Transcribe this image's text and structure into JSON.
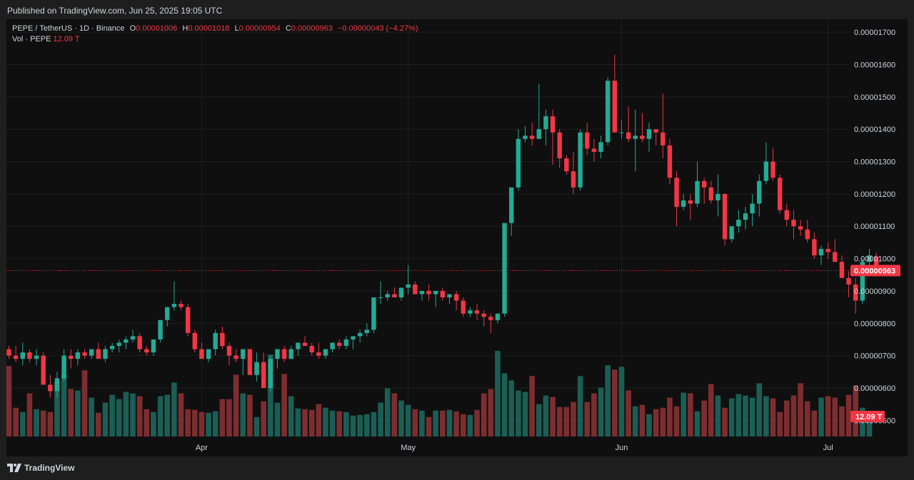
{
  "header": {
    "published": "Published on TradingView.com, Jun 25, 2025 19:05 UTC"
  },
  "legend": {
    "symbol": "PEPE / TetherUS · 1D · Binance",
    "o_label": "O",
    "o_value": "0.00001006",
    "h_label": "H",
    "h_value": "0.00001018",
    "l_label": "L",
    "l_value": "0.00000954",
    "c_label": "C",
    "c_value": "0.00000963",
    "change": "−0.00000043 (−4.27%)",
    "vol_label": "Vol · PEPE",
    "vol_value": "12.09 T"
  },
  "footer": {
    "brand": "TradingView",
    "logo_icon": "tradingview-logo-icon"
  },
  "colors": {
    "up": "#22ab94",
    "down": "#f23645",
    "up_vol": "#1a5e55",
    "down_vol": "#7d2d2f",
    "bg": "#0f0f0f"
  },
  "chart_data": {
    "type": "candlestick",
    "symbol": "PEPE / TetherUS",
    "interval": "1D",
    "y_axis": {
      "ticks": [
        "0.00000500",
        "0.00000600",
        "0.00000700",
        "0.00000800",
        "0.00000900",
        "0.00001000",
        "0.00001100",
        "0.00001200",
        "0.00001300",
        "0.00001400",
        "0.00001500",
        "0.00001600",
        "0.00001700"
      ],
      "range": [
        4.5e-06,
        1.74e-05
      ],
      "scale": 1e-08
    },
    "x_axis": {
      "ticks": [
        "Apr",
        "May",
        "Jun",
        "Jul"
      ],
      "tick_day_index": [
        28,
        58,
        89,
        119
      ]
    },
    "current_price_label": "0.00000963",
    "current_price": 963,
    "volume_label": "12.09 T",
    "candles_1e8": [
      [
        720,
        730,
        690,
        700
      ],
      [
        700,
        730,
        680,
        690
      ],
      [
        690,
        740,
        670,
        710
      ],
      [
        710,
        720,
        680,
        690
      ],
      [
        690,
        720,
        670,
        700
      ],
      [
        700,
        710,
        620,
        610
      ],
      [
        610,
        640,
        570,
        590
      ],
      [
        590,
        650,
        570,
        630
      ],
      [
        630,
        720,
        620,
        700
      ],
      [
        700,
        720,
        660,
        690
      ],
      [
        690,
        720,
        670,
        710
      ],
      [
        710,
        720,
        690,
        700
      ],
      [
        700,
        720,
        690,
        720
      ],
      [
        720,
        740,
        700,
        690
      ],
      [
        690,
        730,
        680,
        720
      ],
      [
        720,
        740,
        710,
        730
      ],
      [
        730,
        750,
        710,
        740
      ],
      [
        740,
        760,
        720,
        750
      ],
      [
        750,
        780,
        740,
        760
      ],
      [
        760,
        770,
        710,
        720
      ],
      [
        720,
        730,
        700,
        710
      ],
      [
        710,
        740,
        700,
        750
      ],
      [
        750,
        800,
        740,
        810
      ],
      [
        810,
        830,
        790,
        850
      ],
      [
        850,
        930,
        840,
        860
      ],
      [
        860,
        870,
        840,
        850
      ],
      [
        850,
        860,
        760,
        770
      ],
      [
        770,
        780,
        710,
        720
      ],
      [
        720,
        740,
        700,
        690
      ],
      [
        690,
        720,
        680,
        720
      ],
      [
        720,
        780,
        700,
        770
      ],
      [
        770,
        790,
        720,
        730
      ],
      [
        730,
        740,
        670,
        700
      ],
      [
        700,
        720,
        680,
        690
      ],
      [
        690,
        710,
        640,
        720
      ],
      [
        720,
        720,
        660,
        640
      ],
      [
        640,
        710,
        620,
        680
      ],
      [
        680,
        710,
        620,
        600
      ],
      [
        600,
        700,
        590,
        690
      ],
      [
        690,
        720,
        660,
        720
      ],
      [
        720,
        730,
        680,
        690
      ],
      [
        690,
        730,
        690,
        720
      ],
      [
        720,
        740,
        700,
        740
      ],
      [
        740,
        760,
        730,
        730
      ],
      [
        730,
        740,
        700,
        710
      ],
      [
        710,
        740,
        690,
        700
      ],
      [
        700,
        720,
        690,
        720
      ],
      [
        720,
        730,
        710,
        740
      ],
      [
        740,
        750,
        720,
        730
      ],
      [
        730,
        760,
        720,
        750
      ],
      [
        750,
        760,
        720,
        760
      ],
      [
        760,
        780,
        740,
        770
      ],
      [
        770,
        800,
        760,
        780
      ],
      [
        780,
        850,
        770,
        880
      ],
      [
        880,
        930,
        860,
        880
      ],
      [
        880,
        900,
        870,
        890
      ],
      [
        890,
        910,
        880,
        880
      ],
      [
        880,
        900,
        870,
        910
      ],
      [
        910,
        980,
        890,
        920
      ],
      [
        920,
        930,
        890,
        890
      ],
      [
        890,
        900,
        870,
        900
      ],
      [
        900,
        920,
        870,
        890
      ],
      [
        890,
        900,
        850,
        900
      ],
      [
        900,
        910,
        870,
        880
      ],
      [
        880,
        890,
        860,
        890
      ],
      [
        890,
        900,
        840,
        870
      ],
      [
        870,
        880,
        820,
        830
      ],
      [
        830,
        850,
        820,
        840
      ],
      [
        840,
        860,
        810,
        830
      ],
      [
        830,
        840,
        790,
        820
      ],
      [
        820,
        830,
        770,
        810
      ],
      [
        810,
        830,
        800,
        830
      ],
      [
        830,
        870,
        820,
        1110
      ],
      [
        1110,
        1170,
        1070,
        1220
      ],
      [
        1220,
        1400,
        1210,
        1370
      ],
      [
        1370,
        1410,
        1360,
        1380
      ],
      [
        1380,
        1420,
        1350,
        1370
      ],
      [
        1370,
        1540,
        1370,
        1400
      ],
      [
        1400,
        1460,
        1350,
        1440
      ],
      [
        1440,
        1460,
        1290,
        1390
      ],
      [
        1390,
        1400,
        1280,
        1310
      ],
      [
        1310,
        1320,
        1260,
        1270
      ],
      [
        1270,
        1330,
        1200,
        1220
      ],
      [
        1220,
        1400,
        1210,
        1390
      ],
      [
        1390,
        1420,
        1320,
        1340
      ],
      [
        1340,
        1370,
        1300,
        1330
      ],
      [
        1330,
        1380,
        1310,
        1360
      ],
      [
        1360,
        1560,
        1350,
        1550
      ],
      [
        1550,
        1630,
        1390,
        1390
      ],
      [
        1390,
        1430,
        1370,
        1390
      ],
      [
        1390,
        1470,
        1360,
        1370
      ],
      [
        1370,
        1460,
        1270,
        1380
      ],
      [
        1380,
        1450,
        1360,
        1370
      ],
      [
        1370,
        1420,
        1330,
        1400
      ],
      [
        1400,
        1400,
        1350,
        1390
      ],
      [
        1390,
        1510,
        1310,
        1350
      ],
      [
        1350,
        1370,
        1230,
        1250
      ],
      [
        1250,
        1270,
        1100,
        1160
      ],
      [
        1160,
        1200,
        1150,
        1180
      ],
      [
        1180,
        1200,
        1120,
        1170
      ],
      [
        1170,
        1300,
        1160,
        1240
      ],
      [
        1240,
        1250,
        1170,
        1220
      ],
      [
        1220,
        1240,
        1170,
        1180
      ],
      [
        1180,
        1260,
        1130,
        1200
      ],
      [
        1200,
        1200,
        1040,
        1060
      ],
      [
        1060,
        1100,
        1050,
        1100
      ],
      [
        1100,
        1150,
        1080,
        1120
      ],
      [
        1120,
        1160,
        1090,
        1140
      ],
      [
        1140,
        1200,
        1100,
        1170
      ],
      [
        1170,
        1260,
        1130,
        1240
      ],
      [
        1240,
        1360,
        1230,
        1300
      ],
      [
        1300,
        1340,
        1240,
        1250
      ],
      [
        1250,
        1260,
        1140,
        1150
      ],
      [
        1150,
        1170,
        1100,
        1120
      ],
      [
        1120,
        1150,
        1060,
        1100
      ],
      [
        1100,
        1120,
        1070,
        1090
      ],
      [
        1090,
        1120,
        1050,
        1060
      ],
      [
        1060,
        1080,
        1000,
        1010
      ],
      [
        1010,
        1040,
        980,
        1030
      ],
      [
        1030,
        1050,
        1000,
        1020
      ],
      [
        1020,
        1060,
        990,
        990
      ],
      [
        990,
        1010,
        940,
        940
      ],
      [
        940,
        960,
        880,
        920
      ],
      [
        920,
        940,
        830,
        870
      ],
      [
        870,
        1000,
        860,
        990
      ],
      [
        990,
        1030,
        960,
        1010
      ],
      [
        1006,
        1018,
        954,
        963
      ]
    ],
    "volume_ratio": [
      0.98,
      0.4,
      0.34,
      0.6,
      0.38,
      0.36,
      0.34,
      0.76,
      0.86,
      0.66,
      0.64,
      0.92,
      0.54,
      0.33,
      0.47,
      0.58,
      0.52,
      0.62,
      0.6,
      0.56,
      0.38,
      0.34,
      0.56,
      0.58,
      0.75,
      0.6,
      0.38,
      0.37,
      0.34,
      0.33,
      0.35,
      0.52,
      0.52,
      0.86,
      0.6,
      0.58,
      0.27,
      0.49,
      1.14,
      0.47,
      0.87,
      0.56,
      0.39,
      0.38,
      0.37,
      0.45,
      0.4,
      0.36,
      0.35,
      0.34,
      0.29,
      0.3,
      0.31,
      0.34,
      0.47,
      0.67,
      0.6,
      0.5,
      0.44,
      0.38,
      0.36,
      0.27,
      0.36,
      0.36,
      0.37,
      0.35,
      0.31,
      0.3,
      0.37,
      0.6,
      0.66,
      1.19,
      0.88,
      0.78,
      0.64,
      0.62,
      0.84,
      0.45,
      0.57,
      0.55,
      0.41,
      0.41,
      0.48,
      0.84,
      0.48,
      0.6,
      0.68,
      0.99,
      0.93,
      0.97,
      0.64,
      0.42,
      0.44,
      0.31,
      0.38,
      0.4,
      0.54,
      0.42,
      0.61,
      0.6,
      0.35,
      0.5,
      0.73,
      0.57,
      0.4,
      0.53,
      0.59,
      0.57,
      0.54,
      0.74,
      0.56,
      0.53,
      0.34,
      0.5,
      0.57,
      0.74,
      0.49,
      0.36,
      0.54,
      0.56,
      0.54,
      0.42,
      0.58,
      0.71,
      0.4,
      0.24
    ]
  }
}
